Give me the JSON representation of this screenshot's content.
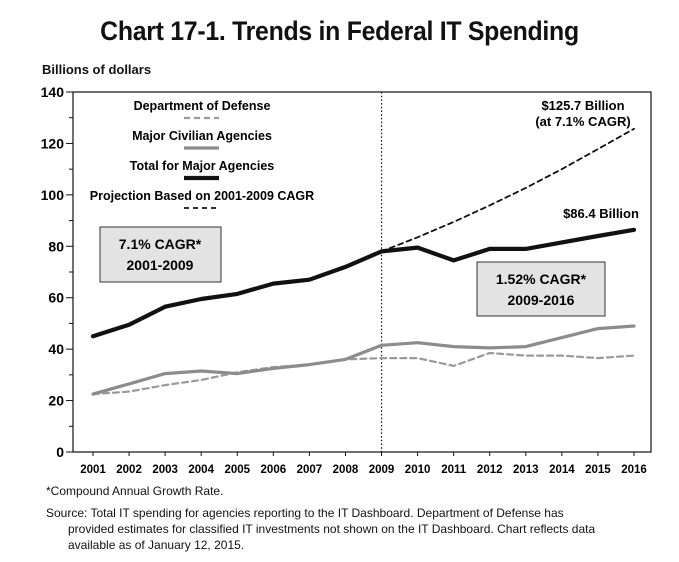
{
  "title": "Chart 17-1.  Trends in Federal IT Spending",
  "footnote": "*Compound Annual Growth Rate.",
  "source_line1": "Source:  Total IT spending for agencies reporting to the IT Dashboard.  Department of Defense has",
  "source_line2": "provided estimates for classified IT investments not shown on the IT Dashboard.  Chart reflects data",
  "source_line3": "available as of January 12, 2015.",
  "chart_data": {
    "type": "line",
    "title": "Chart 17-1.  Trends in Federal IT Spending",
    "ylabel": "Billions of dollars",
    "xlabel": "",
    "ylim": [
      0,
      140
    ],
    "yticks": [
      0,
      20,
      40,
      60,
      80,
      100,
      120,
      140
    ],
    "categories": [
      "2001",
      "2002",
      "2003",
      "2004",
      "2005",
      "2006",
      "2007",
      "2008",
      "2009",
      "2010",
      "2011",
      "2012",
      "2013",
      "2014",
      "2015",
      "2016"
    ],
    "divider_year": "2009",
    "series": [
      {
        "name": "Department of Defense",
        "style": "dashed-gray",
        "color": "#9a9a9a",
        "x": [
          "2001",
          "2002",
          "2003",
          "2004",
          "2005",
          "2006",
          "2007",
          "2008",
          "2009",
          "2010",
          "2011",
          "2012",
          "2013",
          "2014",
          "2015",
          "2016"
        ],
        "values": [
          22.5,
          23.5,
          26,
          28,
          31,
          33,
          34,
          36,
          36.5,
          36.5,
          33.5,
          38.5,
          37.5,
          37.5,
          36.5,
          37.5
        ]
      },
      {
        "name": "Major Civilian Agencies",
        "style": "solid-gray",
        "color": "#8c8c8c",
        "x": [
          "2001",
          "2002",
          "2003",
          "2004",
          "2005",
          "2006",
          "2007",
          "2008",
          "2009",
          "2010",
          "2011",
          "2012",
          "2013",
          "2014",
          "2015",
          "2016"
        ],
        "values": [
          22.5,
          26.5,
          30.5,
          31.5,
          30.5,
          32.5,
          34,
          36,
          41.5,
          42.5,
          41,
          40.5,
          41,
          44.5,
          48,
          49
        ]
      },
      {
        "name": "Total for Major Agencies",
        "style": "solid-black",
        "color": "#111111",
        "x": [
          "2001",
          "2002",
          "2003",
          "2004",
          "2005",
          "2006",
          "2007",
          "2008",
          "2009",
          "2010",
          "2011",
          "2012",
          "2013",
          "2014",
          "2015",
          "2016"
        ],
        "values": [
          45,
          49.5,
          56.5,
          59.5,
          61.5,
          65.5,
          67,
          72,
          78,
          79.5,
          74.5,
          79,
          79,
          81.5,
          84,
          86.4
        ]
      },
      {
        "name": "Projection Based on 2001-2009 CAGR",
        "style": "dashed-black",
        "color": "#111111",
        "x": [
          "2009",
          "2010",
          "2011",
          "2012",
          "2013",
          "2014",
          "2015",
          "2016"
        ],
        "values": [
          78,
          83.5,
          89.5,
          95.9,
          102.7,
          110,
          117.8,
          125.7
        ]
      }
    ],
    "annotations": {
      "cagr_left_line1": "7.1% CAGR*",
      "cagr_left_line2": "2001-2009",
      "cagr_right_line1": "1.52% CAGR*",
      "cagr_right_line2": "2009-2016",
      "projection_end_line1": "$125.7 Billion",
      "projection_end_line2": "(at 7.1% CAGR)",
      "total_end": "$86.4 Billion"
    }
  }
}
